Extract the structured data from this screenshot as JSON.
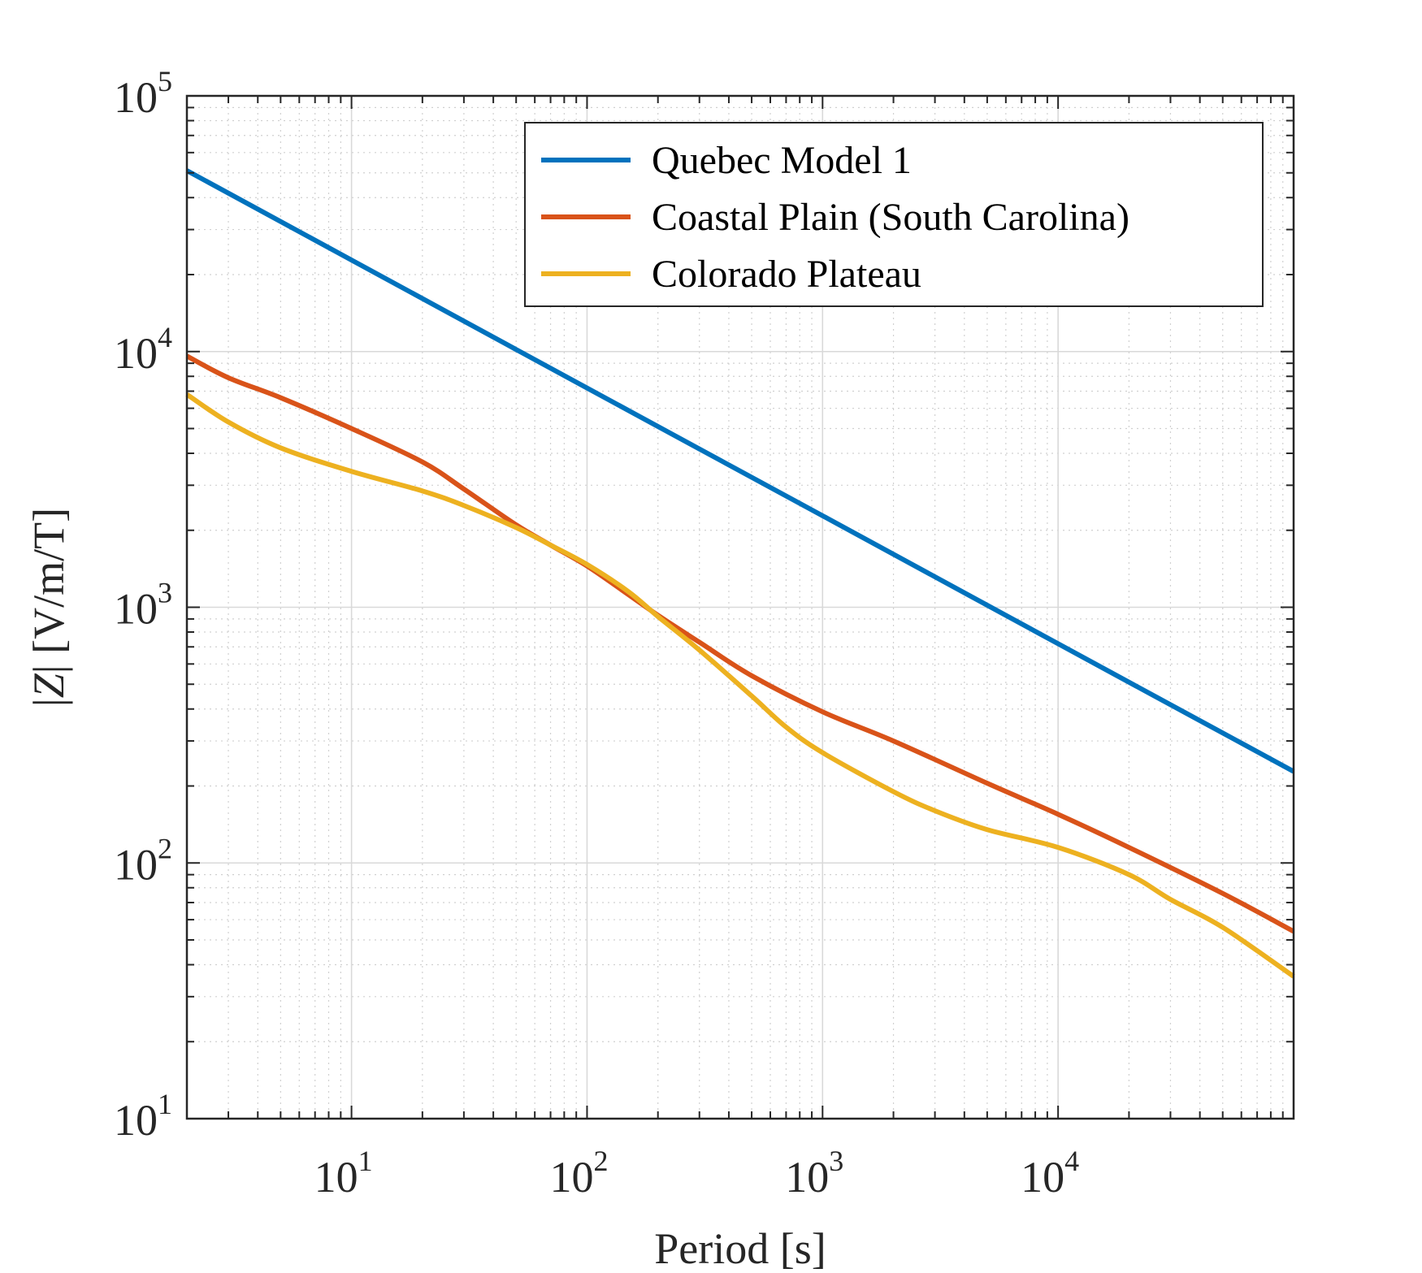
{
  "chart_data": {
    "type": "line",
    "xlabel": "Period [s]",
    "ylabel_prefix": "|",
    "ylabel_symbol": "Z",
    "ylabel_suffix": "| [V/m/T]",
    "xscale": "log",
    "yscale": "log",
    "xlim": [
      2,
      100000
    ],
    "ylim": [
      10,
      100000
    ],
    "grid": true,
    "minor_grid": true,
    "legend_position": "top-right",
    "x_ticks": [
      {
        "base": "10",
        "exp": "1",
        "value": 10
      },
      {
        "base": "10",
        "exp": "2",
        "value": 100
      },
      {
        "base": "10",
        "exp": "3",
        "value": 1000
      },
      {
        "base": "10",
        "exp": "4",
        "value": 10000
      }
    ],
    "y_ticks": [
      {
        "base": "10",
        "exp": "1",
        "value": 10
      },
      {
        "base": "10",
        "exp": "2",
        "value": 100
      },
      {
        "base": "10",
        "exp": "3",
        "value": 1000
      },
      {
        "base": "10",
        "exp": "4",
        "value": 10000
      },
      {
        "base": "10",
        "exp": "5",
        "value": 100000
      }
    ],
    "series": [
      {
        "name": "Quebec Model 1",
        "color": "#0072BD",
        "x": [
          2,
          10,
          100,
          1000,
          10000,
          100000
        ],
        "y": [
          51000,
          22800,
          7200,
          2280,
          720,
          228
        ]
      },
      {
        "name": "Coastal Plain (South Carolina)",
        "color": "#D95319",
        "x": [
          2,
          3,
          5,
          10,
          20,
          30,
          50,
          70,
          100,
          150,
          200,
          300,
          500,
          1000,
          2000,
          5000,
          10000,
          20000,
          50000,
          100000
        ],
        "y": [
          9600,
          7900,
          6600,
          5000,
          3700,
          2900,
          2100,
          1750,
          1450,
          1120,
          930,
          730,
          540,
          390,
          300,
          205,
          155,
          115,
          76,
          54
        ]
      },
      {
        "name": "Colorado Plateau",
        "color": "#EDB120",
        "x": [
          2,
          3,
          5,
          10,
          20,
          30,
          50,
          70,
          100,
          150,
          200,
          300,
          500,
          700,
          1000,
          2000,
          3000,
          5000,
          10000,
          20000,
          30000,
          50000,
          100000
        ],
        "y": [
          6800,
          5300,
          4200,
          3400,
          2850,
          2500,
          2050,
          1750,
          1470,
          1150,
          920,
          680,
          450,
          340,
          270,
          190,
          160,
          135,
          115,
          90,
          72,
          56,
          36
        ]
      }
    ]
  }
}
